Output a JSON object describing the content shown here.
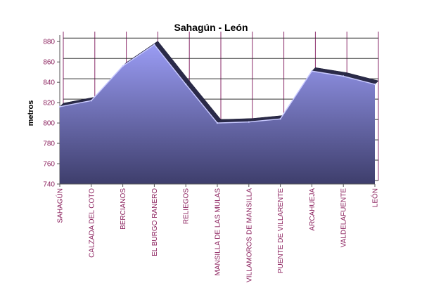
{
  "chart_data": {
    "type": "area",
    "title": "Sahagún - León",
    "xlabel": "",
    "ylabel": "metros",
    "categories": [
      "SAHAGÚN",
      "CALZADA DEL COTO",
      "BERCIANOS",
      "EL BURGO RANERO",
      "RELIEGOS",
      "MANSILLA DE LAS MULAS",
      "VILLAMOROS DE MANSILLA",
      "PUENTE DE VILLARENTE",
      "ARCAHUEJA",
      "VALDELAFUENTE",
      "LEÓN"
    ],
    "values": [
      816,
      822,
      856,
      877,
      838,
      800,
      801,
      804,
      851,
      846,
      838
    ],
    "ylim": [
      740,
      885
    ],
    "yticks": [
      740,
      760,
      780,
      800,
      820,
      840,
      860,
      880
    ],
    "grid": true,
    "colors": {
      "fill_top": "#9a9cf4",
      "fill_bottom": "#3e3e6c",
      "top_face": "#2a2a48",
      "ridge_highlight": "#c8c9ff",
      "gridline": "#333333",
      "vertical_grid": "#8a2a6a",
      "tick_label": "#8a1f5c",
      "axis_text": "#000000"
    }
  }
}
